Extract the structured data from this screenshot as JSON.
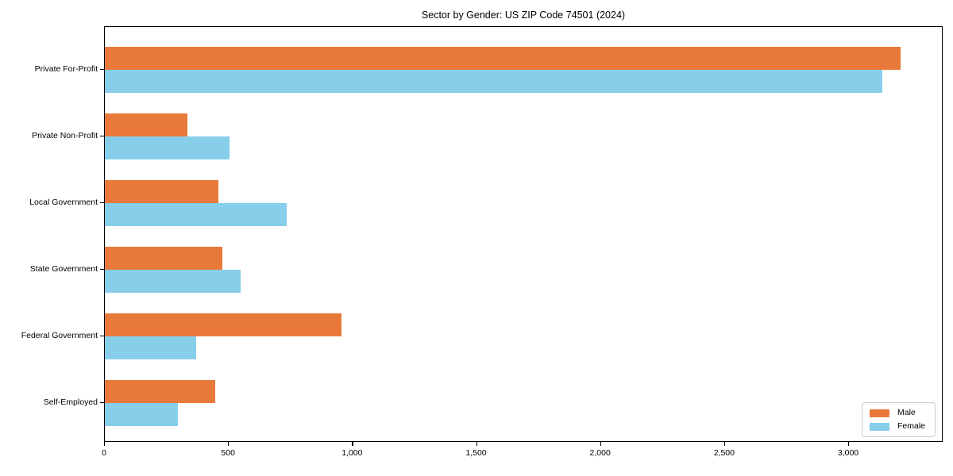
{
  "title": "Sector by Gender: US ZIP Code 74501 (2024)",
  "chart_data": {
    "type": "bar",
    "orientation": "horizontal",
    "title": "Sector by Gender: US ZIP Code 74501 (2024)",
    "categories": [
      "Private For-Profit",
      "Private Non-Profit",
      "Local Government",
      "State Government",
      "Federal Government",
      "Self-Employed"
    ],
    "series": [
      {
        "name": "Male",
        "color": "#e8793a",
        "values": [
          3215,
          335,
          460,
          475,
          955,
          445
        ]
      },
      {
        "name": "Female",
        "color": "#87ceeb",
        "values": [
          3140,
          505,
          735,
          550,
          370,
          295
        ]
      }
    ],
    "xlabel": "",
    "ylabel": "",
    "xlim": [
      0,
      3381
    ],
    "xticks": [
      0,
      500,
      1000,
      1500,
      2000,
      2500,
      3000
    ],
    "xtick_labels": [
      "0",
      "500",
      "1,000",
      "1,500",
      "2,000",
      "2,500",
      "3,000"
    ],
    "grid": false,
    "legend": {
      "position": "lower right",
      "entries": [
        "Male",
        "Female"
      ]
    }
  }
}
